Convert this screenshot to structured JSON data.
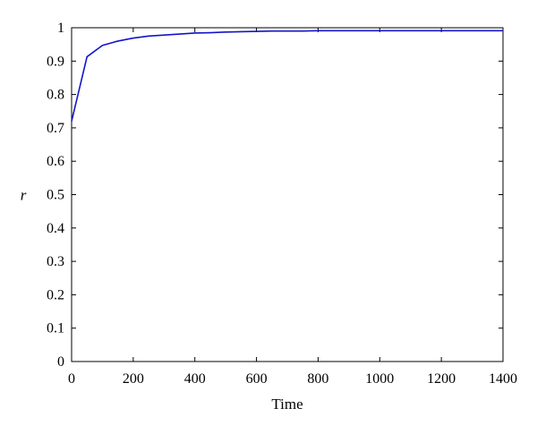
{
  "chart_data": {
    "type": "line",
    "title": "",
    "xlabel": "Time",
    "ylabel": "r",
    "xlim": [
      0,
      1400
    ],
    "ylim": [
      0,
      1
    ],
    "xticks": [
      0,
      200,
      400,
      600,
      800,
      1000,
      1200,
      1400
    ],
    "yticks": [
      0,
      0.1,
      0.2,
      0.3,
      0.4,
      0.5,
      0.6,
      0.7,
      0.8,
      0.9,
      1
    ],
    "grid": false,
    "legend": "none",
    "series": [
      {
        "color": "#1414c8",
        "x": [
          0,
          50,
          100,
          150,
          200,
          250,
          300,
          350,
          400,
          450,
          500,
          550,
          600,
          650,
          700,
          750,
          800,
          850,
          900,
          950,
          1000,
          1050,
          1100,
          1150,
          1200,
          1250,
          1300,
          1350,
          1400
        ],
        "y": [
          0.72,
          0.913,
          0.947,
          0.96,
          0.969,
          0.975,
          0.978,
          0.981,
          0.984,
          0.985,
          0.987,
          0.988,
          0.989,
          0.99,
          0.99,
          0.99,
          0.991,
          0.991,
          0.991,
          0.991,
          0.991,
          0.991,
          0.991,
          0.991,
          0.991,
          0.991,
          0.991,
          0.991,
          0.991
        ]
      }
    ]
  }
}
